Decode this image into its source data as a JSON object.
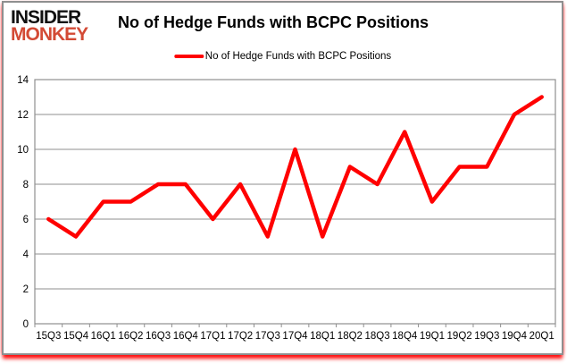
{
  "logo": {
    "line1": "INSIDER",
    "line2": "MONKEY"
  },
  "header": {
    "title": "No of Hedge Funds with BCPC Positions"
  },
  "legend": {
    "label": "No of Hedge Funds with BCPC Positions"
  },
  "colors": {
    "line": "#ff0000",
    "grid": "#8f8f8f",
    "logo_accent": "#d34a35",
    "text": "#000000"
  },
  "chart_data": {
    "type": "line",
    "title": "No of Hedge Funds with BCPC Positions",
    "series_name": "No of Hedge Funds with BCPC Positions",
    "categories": [
      "15Q3",
      "15Q4",
      "16Q1",
      "16Q2",
      "16Q3",
      "16Q4",
      "17Q1",
      "17Q2",
      "17Q3",
      "17Q4",
      "18Q1",
      "18Q2",
      "18Q3",
      "18Q4",
      "19Q1",
      "19Q2",
      "19Q3",
      "19Q4",
      "20Q1"
    ],
    "values": [
      6,
      5,
      7,
      7,
      8,
      8,
      6,
      8,
      5,
      10,
      5,
      9,
      8,
      11,
      7,
      9,
      9,
      12,
      13
    ],
    "xlabel": "",
    "ylabel": "",
    "ylim": [
      0,
      14
    ],
    "yticks": [
      0,
      2,
      4,
      6,
      8,
      10,
      12,
      14
    ],
    "grid": true,
    "legend_position": "top",
    "line_color": "#ff0000",
    "grid_color": "#8f8f8f"
  }
}
